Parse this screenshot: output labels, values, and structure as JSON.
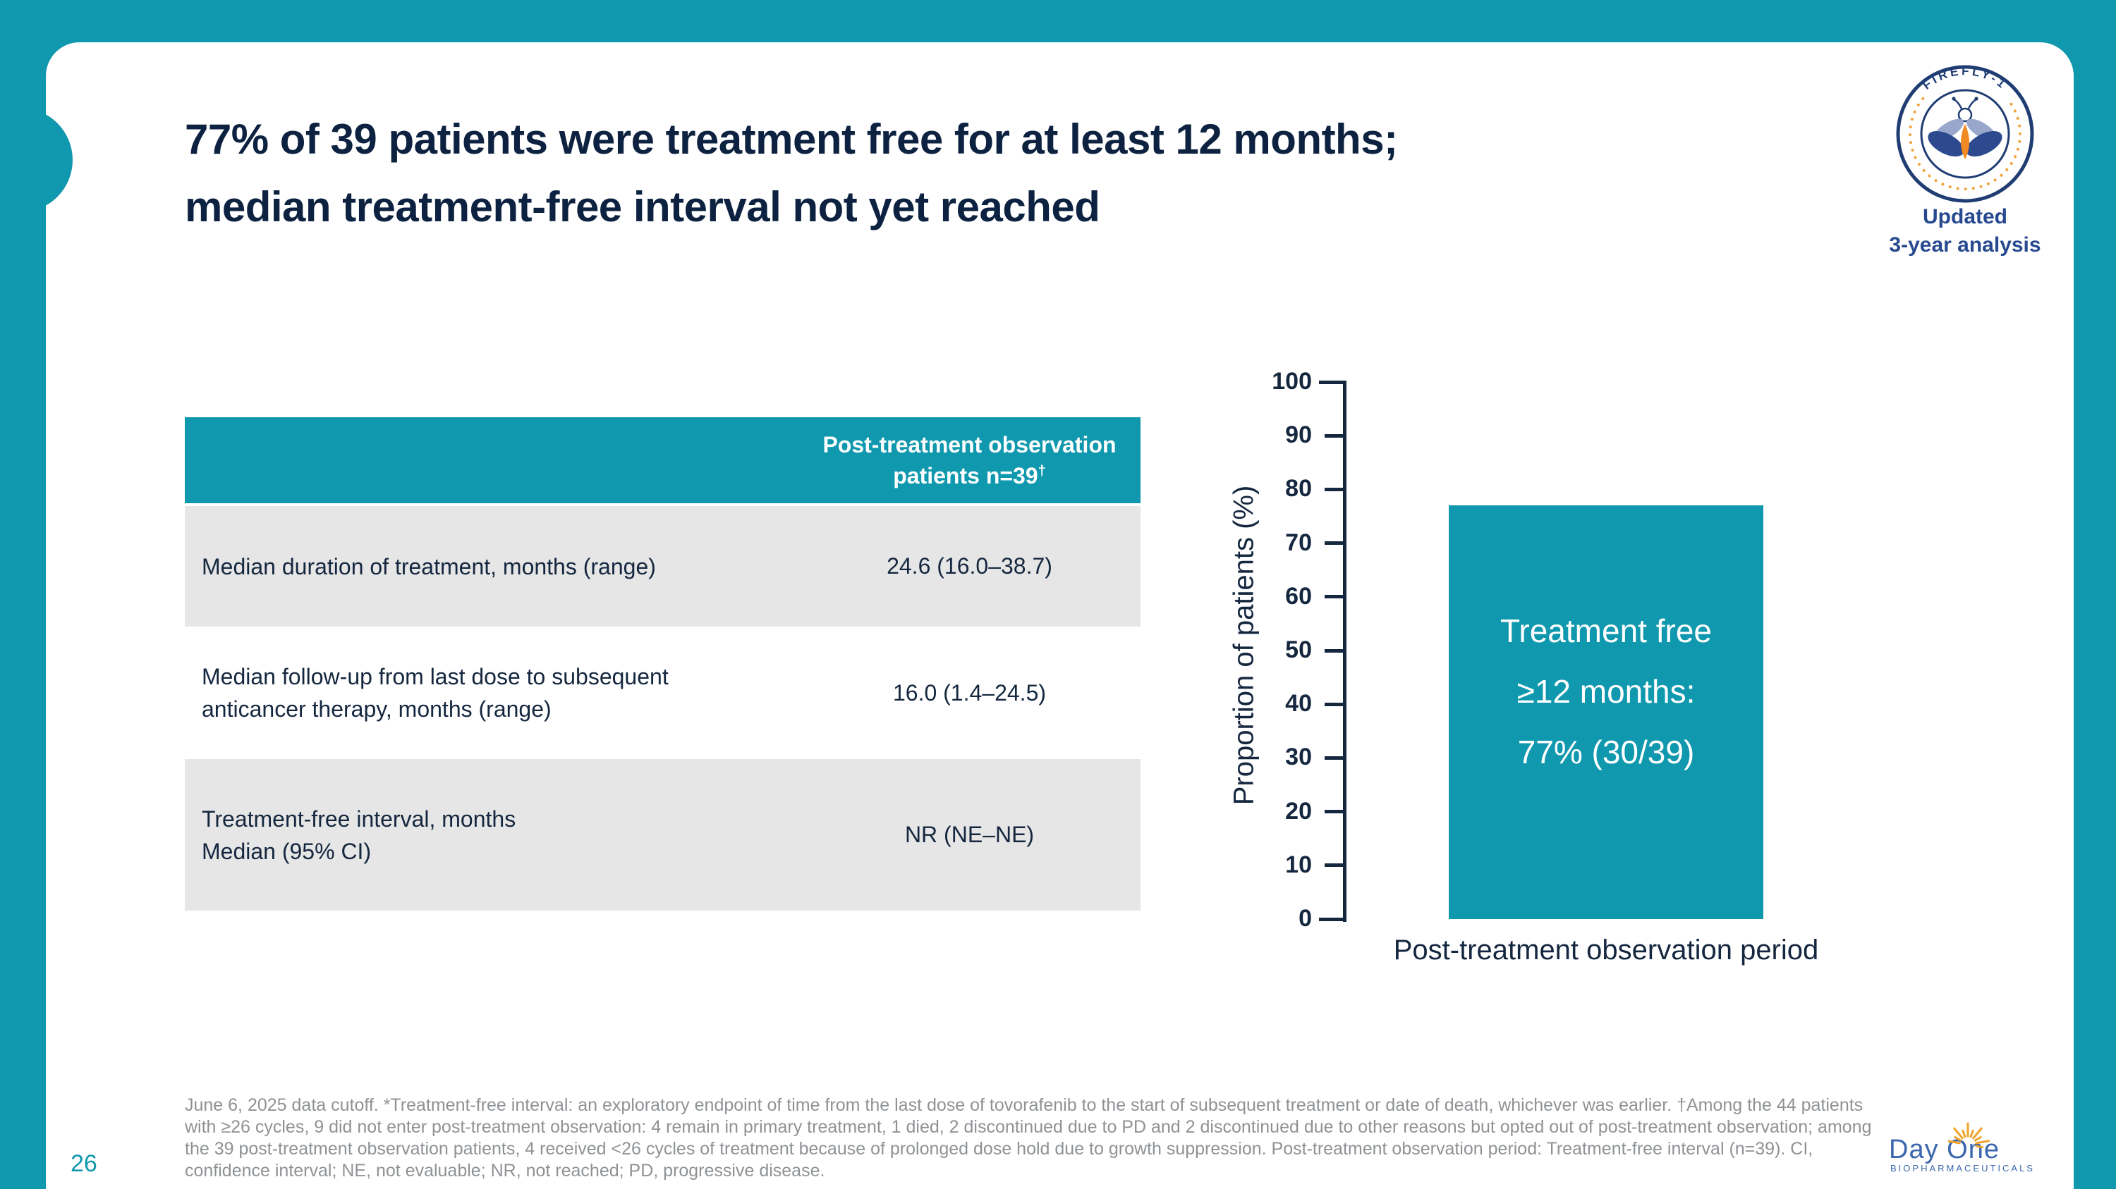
{
  "colors": {
    "teal": "#1098ae",
    "navy": "#0d2240",
    "textDark": "#15273f",
    "rowGray": "#e6e6e6",
    "footnoteGray": "#8f9295",
    "badgeNavy": "#1f3d73",
    "badgeBlue": "#27498f",
    "orange": "#f2a33c",
    "dayoneBlue": "#3b67ae"
  },
  "header": {
    "title_line1": "77% of 39 patients were treatment free for at least 12 months;",
    "title_line2": "median treatment-free interval not yet reached"
  },
  "badge": {
    "arc_text": "FIREFLY-1",
    "caption_line1": "Updated",
    "caption_line2": "3-year analysis"
  },
  "table": {
    "header_line1": "Post-treatment observation",
    "header_line2": "patients n=39",
    "header_sup": "†",
    "rows": [
      {
        "label": "Median duration of treatment, months (range)",
        "value": "24.6 (16.0–38.7)"
      },
      {
        "label": "Median follow-up from last dose to subsequent anticancer therapy, months (range)",
        "value": "16.0 (1.4–24.5)"
      },
      {
        "label": "Treatment-free interval, months\nMedian (95% CI)",
        "value": "NR (NE–NE)"
      }
    ]
  },
  "chart_data": {
    "type": "bar",
    "title": "",
    "categories": [
      "Post-treatment observation period"
    ],
    "values": [
      77
    ],
    "bar_label": "Treatment free\n≥12 months:\n77% (30/39)",
    "xlabel": "Post-treatment observation period",
    "ylabel": "Proportion of patients (%)",
    "ylim": [
      0,
      100
    ],
    "yticks": [
      0,
      10,
      20,
      30,
      40,
      50,
      60,
      70,
      80,
      90,
      100
    ],
    "grid": false,
    "legend": false,
    "bar_color": "#1098ae",
    "bar_label_color": "#ffffff",
    "annotation": "77% (30/39) treatment free ≥12 months"
  },
  "footer": {
    "page_number": "26",
    "footnote": "June 6, 2025 data cutoff. *Treatment-free interval: an exploratory endpoint of time from the last dose of tovorafenib to the start of subsequent treatment or date of death, whichever was earlier. †Among the 44 patients with ≥26 cycles, 9 did not enter post-treatment observation: 4 remain in primary treatment, 1 died, 2 discontinued due to PD and 2 discontinued due to other reasons but opted out of post-treatment observation; among the 39 post-treatment observation patients, 4 received <26 cycles of treatment because of prolonged dose hold due to growth suppression. Post-treatment observation period: Treatment-free interval (n=39). CI, confidence interval; NE, not evaluable; NR, not reached; PD, progressive disease.",
    "logo_name": "Day One",
    "logo_sub": "BIOPHARMACEUTICALS"
  }
}
